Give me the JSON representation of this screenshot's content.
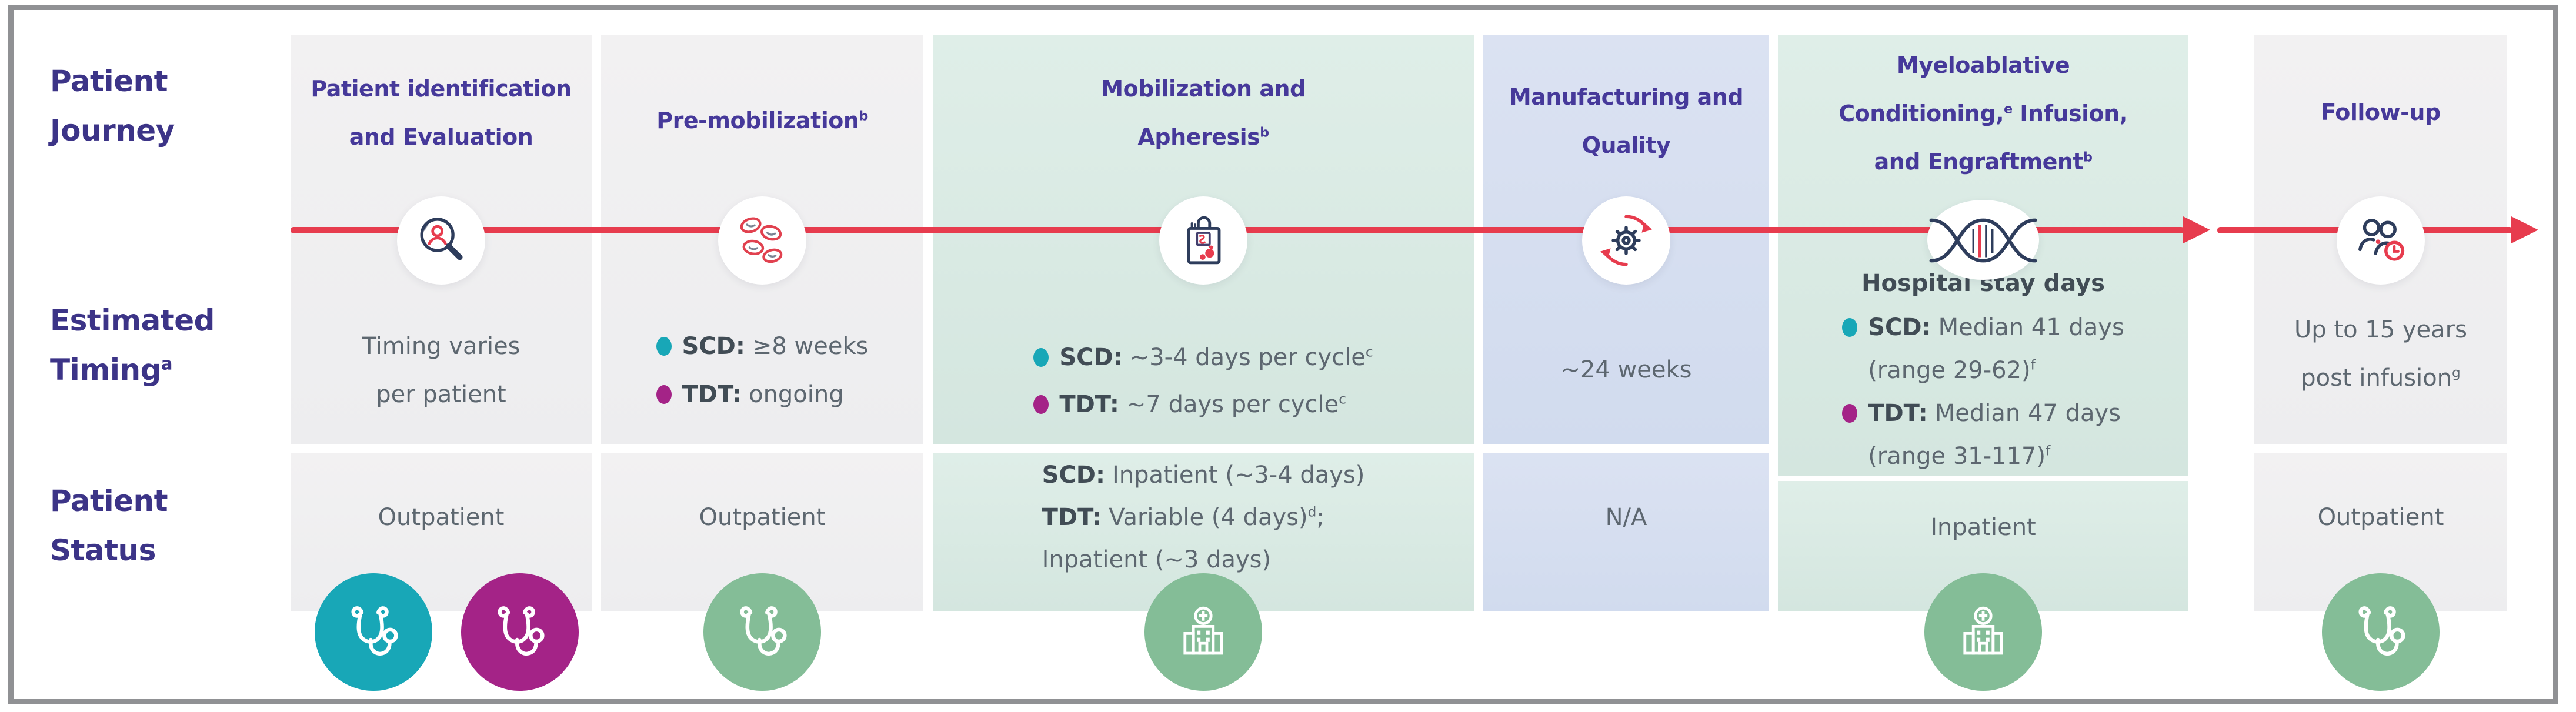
{
  "row_labels": {
    "journey": [
      "Patient",
      "Journey"
    ],
    "timing": [
      "Estimated",
      "Timing^a"
    ],
    "status": [
      "Patient",
      "Status"
    ]
  },
  "columns": [
    {
      "name": "Patient identification and Evaluation",
      "header": [
        "Patient identification",
        "and Evaluation"
      ],
      "icon": "magnifier-person",
      "timing": {
        "lines": [
          "Timing varies",
          "per patient"
        ]
      },
      "status": {
        "lines": [
          "Outpatient"
        ]
      },
      "status_icons": [
        {
          "shape": "stethoscope",
          "color": "teal"
        },
        {
          "shape": "stethoscope",
          "color": "magenta"
        }
      ]
    },
    {
      "name": "Pre-mobilization",
      "header": [
        "Pre-mobilization^b"
      ],
      "icon": "blood-cells",
      "timing": {
        "bullets": [
          {
            "color": "teal",
            "bold": "SCD:",
            "text": "≥8 weeks"
          },
          {
            "color": "magenta",
            "bold": "TDT:",
            "text": "ongoing"
          }
        ]
      },
      "status": {
        "lines": [
          "Outpatient"
        ]
      },
      "status_icons": [
        {
          "shape": "stethoscope",
          "color": "green"
        }
      ]
    },
    {
      "name": "Mobilization and Apheresis",
      "header": [
        "Mobilization and",
        "Apheresis^b"
      ],
      "icon": "apheresis-bag",
      "timing": {
        "bullets": [
          {
            "color": "teal",
            "bold": "SCD:",
            "text": "~3-4 days per cycle^c"
          },
          {
            "color": "magenta",
            "bold": "TDT:",
            "text": "~7 days per cycle^c"
          }
        ]
      },
      "status": {
        "rich_lines": [
          {
            "bold": "SCD:",
            "text": "Inpatient (~3-4 days)"
          },
          {
            "bold": "TDT:",
            "text": "Variable (4 days)^d;"
          },
          {
            "bold": "",
            "text": "Inpatient (~3 days)"
          }
        ]
      },
      "status_icons": [
        {
          "shape": "hospital",
          "color": "green"
        }
      ]
    },
    {
      "name": "Manufacturing and Quality",
      "header": [
        "Manufacturing and",
        "Quality"
      ],
      "icon": "gear-refresh",
      "timing": {
        "lines": [
          "~24 weeks"
        ]
      },
      "status": {
        "lines": [
          "N/A"
        ]
      },
      "status_icons": []
    },
    {
      "name": "Myeloablative Conditioning, Infusion, and Engraftment",
      "header": [
        "Myeloablative",
        "Conditioning,^e Infusion,",
        "and Engraftment^b"
      ],
      "icon": "dna-helix",
      "timing": {
        "title": "Hospital stay days",
        "bullets": [
          {
            "color": "teal",
            "bold": "SCD:",
            "text": "Median 41 days"
          },
          {
            "indent": true,
            "bold": "",
            "text": "(range 29-62)^f"
          },
          {
            "color": "magenta",
            "bold": "TDT:",
            "text": "Median 47 days"
          },
          {
            "indent": true,
            "bold": "",
            "text": "(range 31-117)^f"
          }
        ]
      },
      "status": {
        "lines": [
          "Inpatient"
        ]
      },
      "status_icons": [
        {
          "shape": "hospital",
          "color": "green"
        }
      ]
    },
    {
      "name": "Follow-up",
      "header": [
        "Follow-up"
      ],
      "icon": "people-clock",
      "timing": {
        "lines": [
          "Up to 15 years",
          "post infusion^g"
        ]
      },
      "status": {
        "lines": [
          "Outpatient"
        ]
      },
      "status_icons": [
        {
          "shape": "stethoscope",
          "color": "green"
        }
      ]
    }
  ],
  "colors": {
    "accent-red": "#e73c4e",
    "indigo": "#3c3487",
    "header-purple": "#46399a",
    "teal": "#18a7b7",
    "magenta": "#a42387",
    "green": "#84bd97",
    "body-gray": "#5d6770",
    "bold-slate": "#414c55",
    "frame-border": "#909194",
    "navy": "#2e3d5c"
  }
}
